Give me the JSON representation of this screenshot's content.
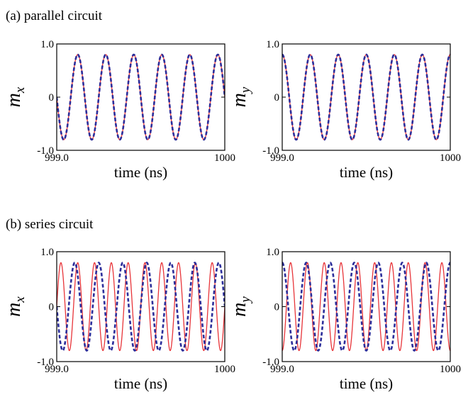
{
  "colors": {
    "red_series": "#e8353a",
    "blue_series": "#2b2d9a",
    "axis": "#000000"
  },
  "sections": [
    {
      "label": "(a) parallel circuit"
    },
    {
      "label": "(b) series circuit"
    }
  ],
  "chart_data": [
    {
      "type": "line",
      "section": "(a) parallel circuit",
      "ylabel": "m",
      "ylabel_sub": "x",
      "xlabel": "time (ns)",
      "x_ticks": [
        "999.0",
        "1000"
      ],
      "y_ticks": [
        "1.0",
        "0",
        "-1.0"
      ],
      "xlim": [
        999.0,
        1000.0
      ],
      "ylim": [
        -1.0,
        1.0
      ],
      "series": [
        {
          "style": "solid",
          "color": "red",
          "amplitude": 0.8,
          "period_ns": 0.1667,
          "value_at_999": 0.0,
          "slope_at_999": "negative"
        },
        {
          "style": "dashed",
          "color": "blue",
          "amplitude": 0.8,
          "period_ns": 0.1667,
          "value_at_999": 0.0,
          "slope_at_999": "negative"
        }
      ]
    },
    {
      "type": "line",
      "section": "(a) parallel circuit",
      "ylabel": "m",
      "ylabel_sub": "y",
      "xlabel": "time (ns)",
      "x_ticks": [
        "999.0",
        "1000"
      ],
      "y_ticks": [
        "1.0",
        "0",
        "-1.0"
      ],
      "xlim": [
        999.0,
        1000.0
      ],
      "ylim": [
        -1.0,
        1.0
      ],
      "series": [
        {
          "style": "solid",
          "color": "red",
          "amplitude": 0.8,
          "period_ns": 0.1667,
          "value_at_999": 0.8,
          "slope_at_999": "negative"
        },
        {
          "style": "dashed",
          "color": "blue",
          "amplitude": 0.8,
          "period_ns": 0.1667,
          "value_at_999": 0.8,
          "slope_at_999": "negative"
        }
      ]
    },
    {
      "type": "line",
      "section": "(b) series circuit",
      "ylabel": "m",
      "ylabel_sub": "x",
      "xlabel": "time (ns)",
      "x_ticks": [
        "999.0",
        "1000"
      ],
      "y_ticks": [
        "1.0",
        "0",
        "-1.0"
      ],
      "xlim": [
        999.0,
        1000.0
      ],
      "ylim": [
        -1.0,
        1.0
      ],
      "series": [
        {
          "style": "solid",
          "color": "red",
          "amplitude": 0.8,
          "period_ns": 0.1,
          "value_at_999": 0.0,
          "slope_at_999": "positive"
        },
        {
          "style": "dashed",
          "color": "blue",
          "amplitude": 0.8,
          "period_ns": 0.1429,
          "value_at_999": 0.0,
          "slope_at_999": "negative"
        }
      ]
    },
    {
      "type": "line",
      "section": "(b) series circuit",
      "ylabel": "m",
      "ylabel_sub": "y",
      "xlabel": "time (ns)",
      "x_ticks": [
        "999.0",
        "1000"
      ],
      "y_ticks": [
        "1.0",
        "0",
        "-1.0"
      ],
      "xlim": [
        999.0,
        1000.0
      ],
      "ylim": [
        -1.0,
        1.0
      ],
      "series": [
        {
          "style": "solid",
          "color": "red",
          "amplitude": 0.8,
          "period_ns": 0.1,
          "value_at_999": -0.8,
          "slope_at_999": "positive"
        },
        {
          "style": "dashed",
          "color": "blue",
          "amplitude": 0.8,
          "period_ns": 0.1429,
          "value_at_999": 0.8,
          "slope_at_999": "negative"
        }
      ]
    }
  ]
}
